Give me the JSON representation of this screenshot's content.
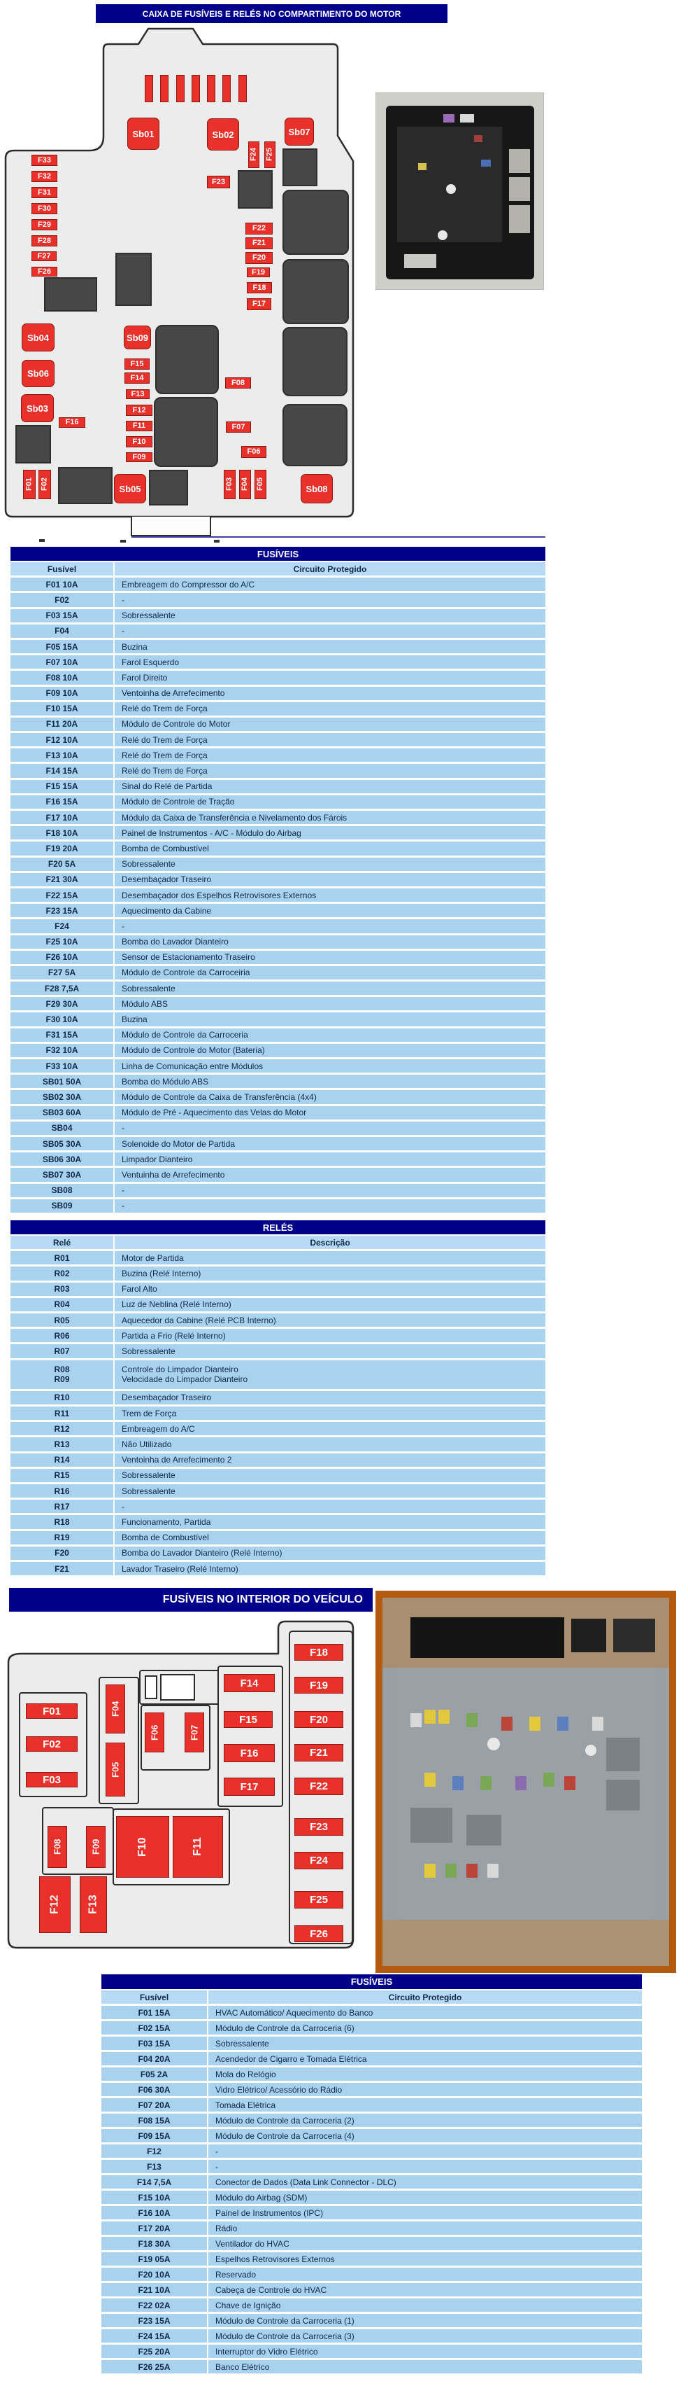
{
  "section1": {
    "title": "CAIXA DE FUSÍVEIS E RELÉS NO COMPARTIMENTO DO MOTOR",
    "diagram_labels": [
      "Sb01",
      "Sb02",
      "Sb07",
      "F24",
      "F25",
      "F23",
      "F33",
      "F32",
      "F31",
      "F30",
      "F29",
      "F28",
      "F27",
      "F26",
      "F22",
      "F21",
      "F20",
      "F19",
      "F18",
      "F17",
      "Sb04",
      "Sb06",
      "Sb03",
      "Sb09",
      "F15",
      "F14",
      "F13",
      "F12",
      "F11",
      "F10",
      "F09",
      "F16",
      "F08",
      "F07",
      "F06",
      "F01",
      "F02",
      "F03",
      "F04",
      "F05",
      "Sb05",
      "Sb08"
    ],
    "fuses_table": {
      "header": "FUSÍVEIS",
      "columns": [
        "Fusível",
        "Circuito Protegido"
      ],
      "rows": [
        [
          "F01 10A",
          "Embreagem do Compressor do A/C"
        ],
        [
          "F02",
          "-"
        ],
        [
          "F03 15A",
          "Sobressalente"
        ],
        [
          "F04",
          "-"
        ],
        [
          "F05 15A",
          "Buzina"
        ],
        [
          "F07 10A",
          "Farol Esquerdo"
        ],
        [
          "F08 10A",
          "Farol Direito"
        ],
        [
          "F09 10A",
          "Ventoinha de Arrefecimento"
        ],
        [
          "F10 15A",
          "Relé do Trem de Força"
        ],
        [
          "F11 20A",
          "Módulo de Controle do Motor"
        ],
        [
          "F12 10A",
          "Relé do Trem de Força"
        ],
        [
          "F13 10A",
          "Relé do Trem de Força"
        ],
        [
          "F14 15A",
          "Relé do Trem de Força"
        ],
        [
          "F15 15A",
          "Sinal do Relé de Partida"
        ],
        [
          "F16 15A",
          "Módulo de Controle de Tração"
        ],
        [
          "F17 10A",
          "Módulo da Caixa de Transferência e Nivelamento dos Fárois"
        ],
        [
          "F18 10A",
          "Painel de Instrumentos - A/C - Módulo do Airbag"
        ],
        [
          "F19 20A",
          "Bomba de Combustível"
        ],
        [
          "F20 5A",
          "Sobressalente"
        ],
        [
          "F21 30A",
          "Desembaçador Traseiro"
        ],
        [
          "F22 15A",
          "Desembaçador dos Espelhos Retrovisores Externos"
        ],
        [
          "F23 15A",
          "Aquecimento da Cabine"
        ],
        [
          "F24",
          "-"
        ],
        [
          "F25 10A",
          "Bomba do Lavador Dianteiro"
        ],
        [
          "F26 10A",
          "Sensor de Estacionamento Traseiro"
        ],
        [
          "F27 5A",
          "Módulo de Controle da Carroceiria"
        ],
        [
          "F28 7,5A",
          "Sobressalente"
        ],
        [
          "F29 30A",
          "Módulo ABS"
        ],
        [
          "F30 10A",
          "Buzina"
        ],
        [
          "F31 15A",
          "Módulo de Controle da Carroceria"
        ],
        [
          "F32 10A",
          "Módulo de Controle do Motor (Bateria)"
        ],
        [
          "F33 10A",
          "Linha de Comunicação entre Módulos"
        ],
        [
          "SB01 50A",
          "Bomba do Módulo ABS"
        ],
        [
          "SB02 30A",
          "Módulo de Controle da Caixa de Transferência (4x4)"
        ],
        [
          "SB03 60A",
          "Módulo de Pré - Aquecimento das Velas do Motor"
        ],
        [
          "SB04",
          "-"
        ],
        [
          "SB05 30A",
          "Solenoide do Motor de Partida"
        ],
        [
          "SB06 30A",
          "Limpador Dianteiro"
        ],
        [
          "SB07 30A",
          "Ventuinha de Arrefecimento"
        ],
        [
          "SB08",
          "-"
        ],
        [
          "SB09",
          "-"
        ]
      ]
    },
    "relays_table": {
      "header": "RELÉS",
      "columns": [
        "Relé",
        "Descrição"
      ],
      "rows": [
        [
          "R01",
          "Motor de Partida"
        ],
        [
          "R02",
          "Buzina (Relé Interno)"
        ],
        [
          "R03",
          "Farol Alto"
        ],
        [
          "R04",
          "Luz de Neblina (Relé Interno)"
        ],
        [
          "R05",
          "Aquecedor da Cabine (Relé PCB Interno)"
        ],
        [
          "R06",
          "Partida a Frio (Relé Interno)"
        ],
        [
          "R07",
          "Sobressalente"
        ],
        [
          "R08|R09",
          "Controle do Limpador Dianteiro|Velocidade do Limpador Dianteiro"
        ],
        [
          "R10",
          "Desembaçador Traseiro"
        ],
        [
          "R11",
          "Trem de Força"
        ],
        [
          "R12",
          "Embreagem do A/C"
        ],
        [
          "R13",
          "Não Utilizado"
        ],
        [
          "R14",
          "Ventoinha de Arrefecimento 2"
        ],
        [
          "R15",
          "Sobressalente"
        ],
        [
          "R16",
          "Sobressalente"
        ],
        [
          "R17",
          "-"
        ],
        [
          "R18",
          "Funcionamento, Partida"
        ],
        [
          "R19",
          "Bomba de Combustível"
        ],
        [
          "F20",
          "Bomba do Lavador Dianteiro (Relé Interno)"
        ],
        [
          "F21",
          "Lavador Traseiro (Relé Interno)"
        ]
      ]
    }
  },
  "section2": {
    "title": "FUSÍVEIS NO INTERIOR DO VEÍCULO",
    "diagram_labels": [
      "F01",
      "F02",
      "F03",
      "F04",
      "F05",
      "F06",
      "F07",
      "F08",
      "F09",
      "F10",
      "F11",
      "F12",
      "F13",
      "F14",
      "F15",
      "F16",
      "F17",
      "F18",
      "F19",
      "F20",
      "F21",
      "F22",
      "F23",
      "F24",
      "F25",
      "F26"
    ],
    "fuses_table": {
      "header": "FUSÍVEIS",
      "columns": [
        "Fusível",
        "Circuito Protegido"
      ],
      "rows": [
        [
          "F01 15A",
          "HVAC Automático/ Aquecimento do Banco"
        ],
        [
          "F02 15A",
          "Módulo de Controle da Carroceria (6)"
        ],
        [
          "F03 15A",
          "Sobressalente"
        ],
        [
          "F04 20A",
          "Acendedor de Cigarro e Tomada Elétrica"
        ],
        [
          "F05 2A",
          "Mola do Relógio"
        ],
        [
          "F06 30A",
          "Vidro Elétrico/ Acessório do Rádio"
        ],
        [
          "F07 20A",
          "Tomada Elétrica"
        ],
        [
          "F08 15A",
          "Módulo de Controle da Carroceria (2)"
        ],
        [
          "F09 15A",
          "Módulo de Controle da Carroceria (4)"
        ],
        [
          "F12",
          "-"
        ],
        [
          "F13",
          "-"
        ],
        [
          "F14 7,5A",
          "Conector de Dados (Data Link Connector - DLC)"
        ],
        [
          "F15 10A",
          "Módulo do Airbag (SDM)"
        ],
        [
          "F16 10A",
          "Painel de Instrumentos (IPC)"
        ],
        [
          "F17 20A",
          "Rádio"
        ],
        [
          "F18 30A",
          "Ventilador do HVAC"
        ],
        [
          "F19 05A",
          "Espelhos Retrovisores Externos"
        ],
        [
          "F20 10A",
          "Reservado"
        ],
        [
          "F21 10A",
          "Cabeça de Controle do HVAC"
        ],
        [
          "F22 02A",
          "Chave de Ignição"
        ],
        [
          "F23 15A",
          "Módulo de Controle da Carroceria (1)"
        ],
        [
          "F24 15A",
          "Módulo de Controle da Carroceria (3)"
        ],
        [
          "F25 20A",
          "Interruptor do Vidro Elétrico"
        ],
        [
          "F26 25A",
          "Banco Elétrico"
        ]
      ]
    }
  },
  "colors": {
    "accent_navy": "#00008B",
    "fuse_red": "#e8312b",
    "row_blue": "#a9d2ee",
    "header_blue": "#b7dbf4"
  }
}
